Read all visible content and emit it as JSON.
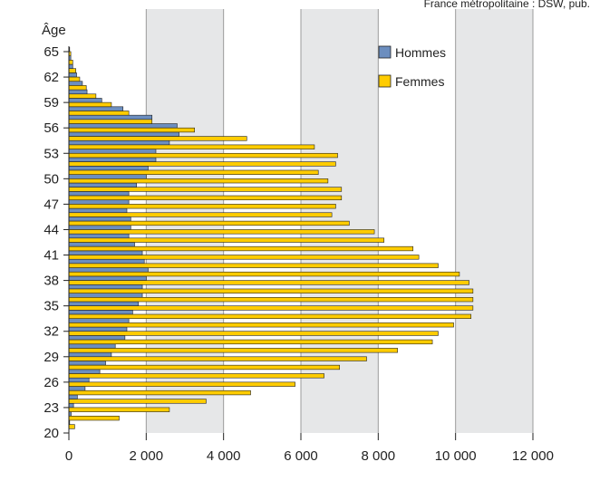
{
  "source_note": "France métropolitaine : DSW, pub.",
  "chart_data": {
    "type": "bar",
    "orientation": "horizontal",
    "title": "",
    "ylabel": "Âge",
    "xlabel": "",
    "xlim": [
      0,
      12000
    ],
    "xticks": [
      0,
      2000,
      4000,
      6000,
      8000,
      10000,
      12000
    ],
    "xtick_labels": [
      "0",
      "2 000",
      "4 000",
      "6 000",
      "8 000",
      "10 000",
      "12 000"
    ],
    "ylim": [
      20,
      65
    ],
    "yticks": [
      20,
      23,
      26,
      29,
      32,
      35,
      38,
      41,
      44,
      47,
      50,
      53,
      56,
      59,
      62,
      65
    ],
    "ages": [
      21,
      22,
      23,
      24,
      25,
      26,
      27,
      28,
      29,
      30,
      31,
      32,
      33,
      34,
      35,
      36,
      37,
      38,
      39,
      40,
      41,
      42,
      43,
      44,
      45,
      46,
      47,
      48,
      49,
      50,
      51,
      52,
      53,
      54,
      55,
      56,
      57,
      58,
      59,
      60,
      61,
      62,
      63,
      64,
      65
    ],
    "series": [
      {
        "name": "Hommes",
        "color": "#6c8ebf",
        "values": [
          20,
          60,
          120,
          220,
          420,
          520,
          800,
          950,
          1100,
          1200,
          1450,
          1500,
          1550,
          1650,
          1800,
          1900,
          1900,
          2000,
          2050,
          1950,
          1900,
          1700,
          1550,
          1600,
          1600,
          1500,
          1550,
          1550,
          1750,
          2000,
          2050,
          2250,
          2250,
          2600,
          2850,
          2800,
          2150,
          1400,
          850,
          470,
          350,
          200,
          100,
          50,
          20
        ]
      },
      {
        "name": "Femmes",
        "color": "#ffcc00",
        "values": [
          150,
          1300,
          2600,
          3550,
          4700,
          5850,
          6600,
          7000,
          7700,
          8500,
          9400,
          9550,
          9950,
          10400,
          10450,
          10450,
          10450,
          10350,
          10100,
          9550,
          9050,
          8900,
          8150,
          7900,
          7250,
          6800,
          6900,
          7050,
          7050,
          6700,
          6450,
          6900,
          6950,
          6350,
          4600,
          3250,
          2150,
          1550,
          1100,
          700,
          450,
          280,
          180,
          100,
          50
        ]
      }
    ],
    "legend": {
      "position": "top-right",
      "entries": [
        "Hommes",
        "Femmes"
      ]
    },
    "colors": {
      "band": "#e6e7e8",
      "gridline": "#9b9b9b",
      "axis": "#222222"
    }
  }
}
